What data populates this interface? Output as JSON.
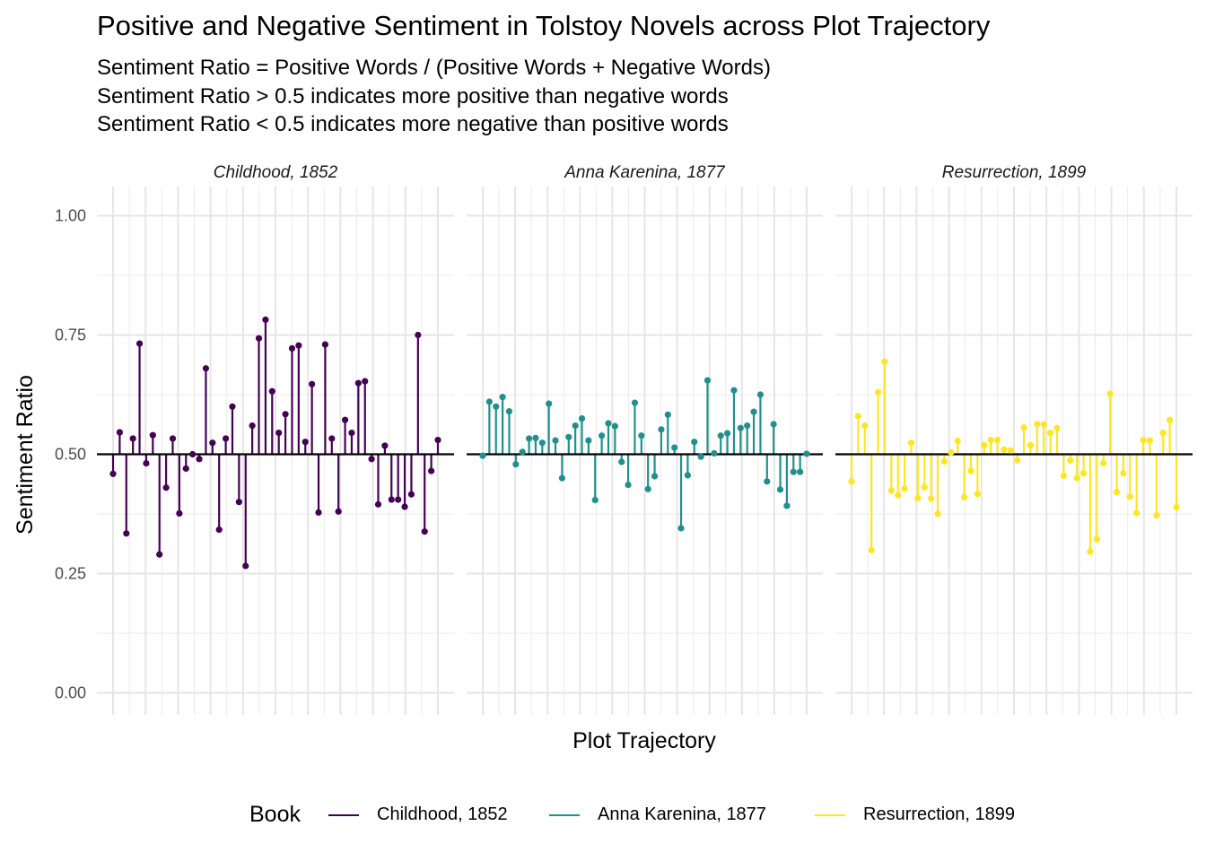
{
  "title": "Positive and Negative Sentiment in Tolstoy Novels across Plot Trajectory",
  "subtitle_lines": [
    "Sentiment Ratio = Positive Words / (Positive Words + Negative Words)",
    "Sentiment Ratio > 0.5 indicates more positive than negative words",
    "Sentiment Ratio < 0.5 indicates more negative than positive words"
  ],
  "legend": {
    "title": "Book",
    "items": [
      {
        "label": "Childhood, 1852",
        "color": "#440154"
      },
      {
        "label": "Anna Karenina, 1877",
        "color": "#21908c"
      },
      {
        "label": "Resurrection, 1899",
        "color": "#fde725"
      }
    ]
  },
  "chart_data": {
    "type": "lollipop",
    "xlabel": "Plot Trajectory",
    "ylabel": "Sentiment Ratio",
    "ylim": [
      0,
      1
    ],
    "yticks": [
      0.0,
      0.25,
      0.5,
      0.75,
      1.0
    ],
    "ytick_labels": [
      "0.00",
      "0.25",
      "0.50",
      "0.75",
      "1.00"
    ],
    "baseline": 0.5,
    "grid": true,
    "legend_position": "bottom",
    "panels": [
      {
        "name": "Childhood, 1852",
        "color": "#440154",
        "values": [
          0.459,
          0.546,
          0.334,
          0.533,
          0.732,
          0.481,
          0.54,
          0.29,
          0.43,
          0.533,
          0.376,
          0.47,
          0.5,
          0.49,
          0.68,
          0.524,
          0.342,
          0.533,
          0.6,
          0.4,
          0.266,
          0.56,
          0.743,
          0.782,
          0.632,
          0.545,
          0.584,
          0.722,
          0.728,
          0.526,
          0.647,
          0.378,
          0.73,
          0.533,
          0.38,
          0.572,
          0.545,
          0.649,
          0.653,
          0.49,
          0.395,
          0.518,
          0.405,
          0.405,
          0.39,
          0.416,
          0.75,
          0.338,
          0.465,
          0.53
        ]
      },
      {
        "name": "Anna Karenina, 1877",
        "color": "#21908c",
        "values": [
          0.497,
          0.61,
          0.6,
          0.62,
          0.59,
          0.479,
          0.505,
          0.533,
          0.534,
          0.524,
          0.606,
          0.529,
          0.45,
          0.536,
          0.56,
          0.575,
          0.529,
          0.404,
          0.539,
          0.565,
          0.559,
          0.484,
          0.436,
          0.608,
          0.539,
          0.427,
          0.454,
          0.552,
          0.583,
          0.514,
          0.345,
          0.456,
          0.526,
          0.495,
          0.655,
          0.502,
          0.539,
          0.544,
          0.634,
          0.555,
          0.56,
          0.589,
          0.625,
          0.443,
          0.563,
          0.426,
          0.392,
          0.463,
          0.463,
          0.501
        ]
      },
      {
        "name": "Resurrection, 1899",
        "color": "#fde725",
        "values": [
          0.443,
          0.58,
          0.56,
          0.299,
          0.63,
          0.694,
          0.424,
          0.414,
          0.428,
          0.524,
          0.408,
          0.431,
          0.407,
          0.375,
          0.485,
          0.504,
          0.528,
          0.41,
          0.465,
          0.417,
          0.519,
          0.53,
          0.53,
          0.51,
          0.508,
          0.487,
          0.556,
          0.519,
          0.563,
          0.563,
          0.545,
          0.555,
          0.455,
          0.487,
          0.45,
          0.46,
          0.296,
          0.322,
          0.481,
          0.627,
          0.421,
          0.46,
          0.411,
          0.377,
          0.53,
          0.529,
          0.372,
          0.545,
          0.572,
          0.389
        ]
      }
    ]
  }
}
